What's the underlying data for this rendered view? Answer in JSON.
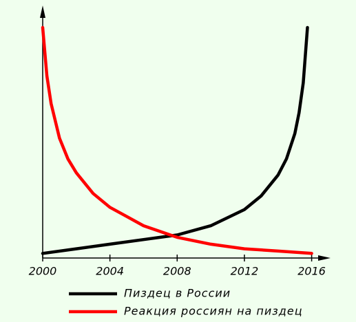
{
  "chart_data": {
    "type": "line",
    "xlim": [
      2000,
      2017
    ],
    "ylim": [
      0,
      100
    ],
    "xticks": [
      2000,
      2004,
      2008,
      2012,
      2016
    ],
    "series": [
      {
        "name": "Пиздец в России",
        "color": "#000000",
        "x": [
          2000,
          2002,
          2004,
          2006,
          2008,
          2010,
          2012,
          2013,
          2014,
          2014.5,
          2015,
          2015.25,
          2015.5,
          2015.75
        ],
        "values": [
          2,
          4,
          6,
          8,
          10,
          14,
          21,
          27,
          36,
          43,
          54,
          63,
          76,
          100
        ]
      },
      {
        "name": "Реакция россиян на пиздец",
        "color": "#ff0000",
        "x": [
          2000,
          2000.25,
          2000.5,
          2001,
          2001.5,
          2002,
          2003,
          2004,
          2005,
          2006,
          2008,
          2010,
          2012,
          2014,
          2016
        ],
        "values": [
          100,
          79,
          67,
          52,
          43,
          37,
          28,
          22,
          18,
          14,
          9,
          6,
          4,
          3,
          2
        ]
      }
    ]
  }
}
